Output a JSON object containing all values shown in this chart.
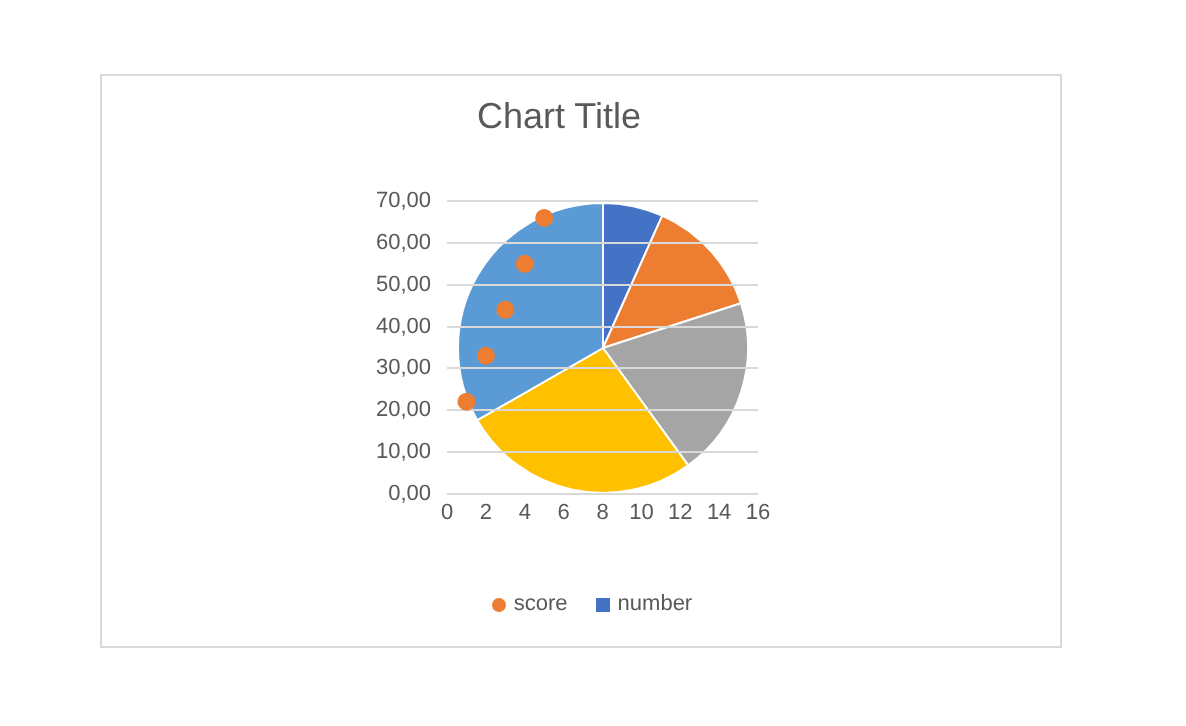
{
  "chart_data": [
    {
      "type": "pie",
      "categories": [
        null,
        null,
        null,
        null,
        null
      ],
      "series": [
        {
          "name": "number",
          "values": [
            6.7,
            13.3,
            20,
            26.7,
            33.3
          ],
          "colors": [
            "#4472c4",
            "#ed7d31",
            "#a5a5a5",
            "#ffc000",
            "#5b9bd5"
          ]
        }
      ],
      "legend": "bottom"
    },
    {
      "type": "scatter",
      "title": "Chart Title",
      "series": [
        {
          "name": "score",
          "x": [
            1,
            2,
            3,
            4,
            5
          ],
          "values": [
            22,
            33,
            44,
            55,
            66
          ],
          "color": "#ed7d31"
        }
      ],
      "xlim": [
        0,
        16
      ],
      "xticks": [
        0,
        2,
        4,
        6,
        8,
        10,
        12,
        14,
        16
      ],
      "ylim": [
        0,
        70
      ],
      "yticks": [
        {
          "value": 0,
          "label": "0,00"
        },
        {
          "value": 10,
          "label": "10,00"
        },
        {
          "value": 20,
          "label": "20,00"
        },
        {
          "value": 30,
          "label": "30,00"
        },
        {
          "value": 40,
          "label": "40,00"
        },
        {
          "value": 50,
          "label": "50,00"
        },
        {
          "value": 60,
          "label": "60,00"
        },
        {
          "value": 70,
          "label": "70,00"
        }
      ],
      "grid": "y",
      "legend": "bottom",
      "marker": "circle"
    }
  ]
}
